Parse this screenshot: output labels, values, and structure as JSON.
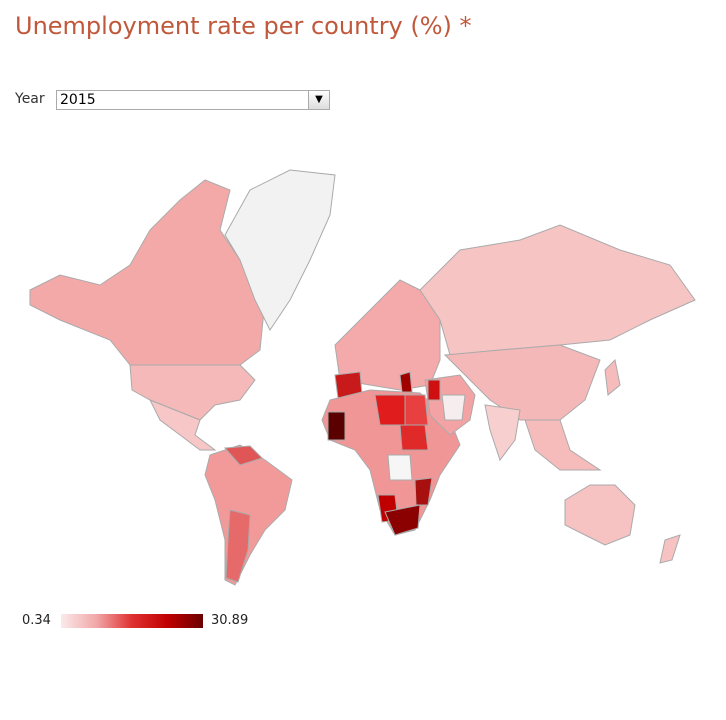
{
  "header": {
    "title": "Unemployment rate per country (%) *"
  },
  "controls": {
    "year_label": "Year",
    "year_value": "2015"
  },
  "legend": {
    "min": 0.34,
    "max": 30.89
  }
}
